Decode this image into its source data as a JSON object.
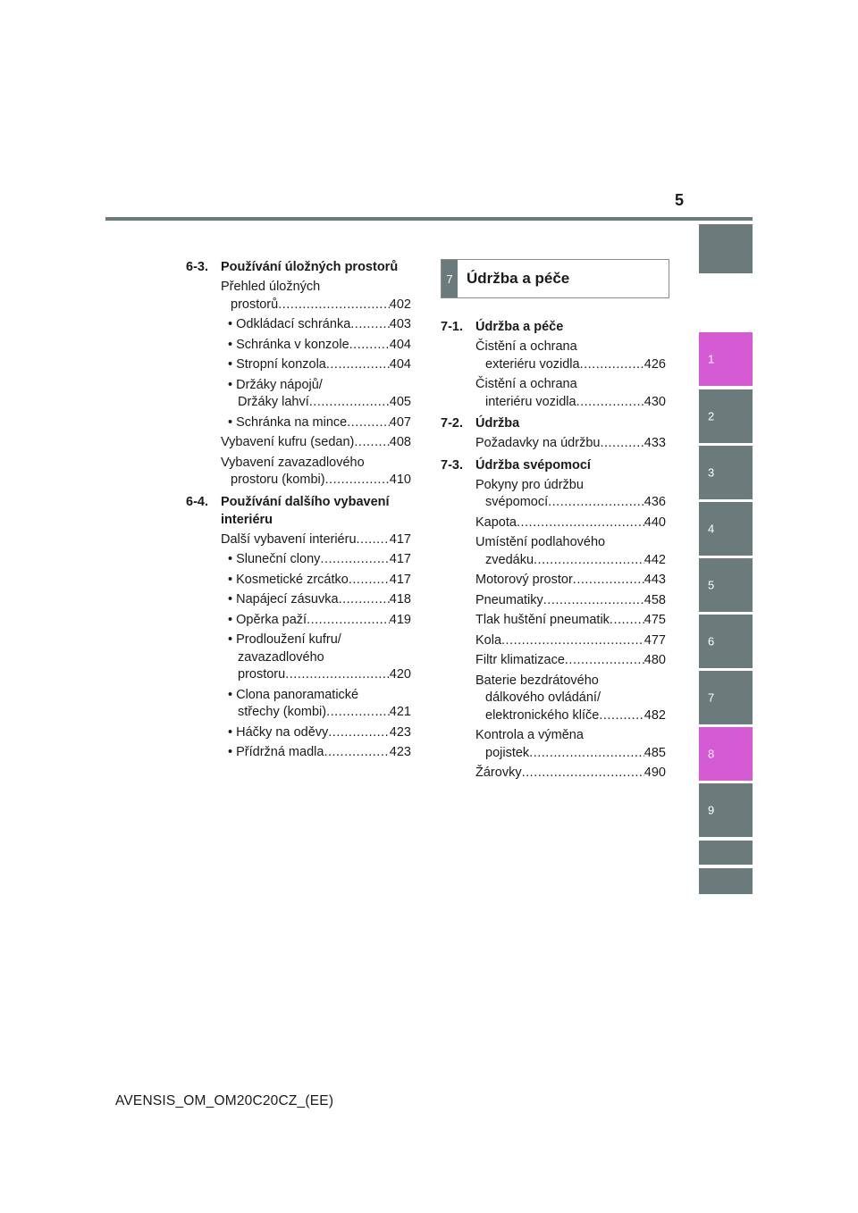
{
  "page_number": "5",
  "footer": "AVENSIS_OM_OM20C20CZ_(EE)",
  "colors": {
    "tab_gray": "#6b7b7b",
    "tab_pink": "#d45bd4"
  },
  "tabs": [
    {
      "label": "",
      "color": "gray"
    },
    {
      "label": "1",
      "color": "pink"
    },
    {
      "label": "2",
      "color": "gray"
    },
    {
      "label": "3",
      "color": "gray"
    },
    {
      "label": "4",
      "color": "gray"
    },
    {
      "label": "5",
      "color": "gray"
    },
    {
      "label": "6",
      "color": "gray"
    },
    {
      "label": "7",
      "color": "gray"
    },
    {
      "label": "8",
      "color": "pink"
    },
    {
      "label": "9",
      "color": "gray"
    },
    {
      "label": "",
      "color": "gray"
    },
    {
      "label": "",
      "color": "gray"
    }
  ],
  "left": {
    "s1": {
      "num": "6-3.",
      "title": "Používání úložných prostorů"
    },
    "s1_entries": [
      {
        "l1": "Přehled úložných",
        "l2": "prostorů",
        "page": "402"
      },
      {
        "l1": "• Odkládací schránka",
        "page": "403"
      },
      {
        "l1": "• Schránka v konzole",
        "page": "404"
      },
      {
        "l1": "• Stropní konzola",
        "page": "404"
      },
      {
        "l1": "• Držáky nápojů/",
        "l2": "Držáky lahví",
        "page": "405"
      },
      {
        "l1": "• Schránka na mince",
        "page": "407"
      },
      {
        "l1": "Vybavení kufru (sedan)",
        "page": "408"
      },
      {
        "l1": "Vybavení zavazadlového",
        "l2": "prostoru (kombi)",
        "page": "410"
      }
    ],
    "s2": {
      "num": "6-4.",
      "title": "Používání dalšího vybavení interiéru"
    },
    "s2_entries": [
      {
        "l1": "Další vybavení interiéru",
        "page": "417"
      },
      {
        "l1": "• Sluneční clony",
        "page": "417"
      },
      {
        "l1": "• Kosmetické zrcátko",
        "page": "417"
      },
      {
        "l1": "• Napájecí zásuvka",
        "page": "418"
      },
      {
        "l1": "• Opěrka paží",
        "page": "419"
      },
      {
        "l1": "• Prodloužení kufru/",
        "l2": "zavazadlového",
        "l3": "prostoru",
        "page": "420"
      },
      {
        "l1": "• Clona panoramatické",
        "l2": "střechy (kombi)",
        "page": "421"
      },
      {
        "l1": "• Háčky na oděvy",
        "page": "423"
      },
      {
        "l1": "• Přídržná madla",
        "page": "423"
      }
    ]
  },
  "chapter": {
    "badge": "7",
    "title": "Údržba a péče"
  },
  "right": {
    "s1": {
      "num": "7-1.",
      "title": "Údržba a péče"
    },
    "s1_entries": [
      {
        "l1": "Čistění a ochrana",
        "l2": "exteriéru vozidla",
        "page": "426"
      },
      {
        "l1": "Čistění a ochrana",
        "l2": "interiéru vozidla",
        "page": "430"
      }
    ],
    "s2": {
      "num": "7-2.",
      "title": "Údržba"
    },
    "s2_entries": [
      {
        "l1": "Požadavky na údržbu",
        "page": "433"
      }
    ],
    "s3": {
      "num": "7-3.",
      "title": "Údržba svépomocí"
    },
    "s3_entries": [
      {
        "l1": "Pokyny pro údržbu",
        "l2": "svépomocí",
        "page": "436"
      },
      {
        "l1": "Kapota",
        "page": "440"
      },
      {
        "l1": "Umístění podlahového",
        "l2": "zvedáku",
        "page": "442"
      },
      {
        "l1": "Motorový prostor",
        "page": "443"
      },
      {
        "l1": "Pneumatiky",
        "page": "458"
      },
      {
        "l1": "Tlak huštění pneumatik",
        "page": "475"
      },
      {
        "l1": "Kola",
        "page": "477"
      },
      {
        "l1": "Filtr klimatizace",
        "page": "480"
      },
      {
        "l1": "Baterie bezdrátového",
        "l2": "dálkového ovládání/",
        "l3": "elektronického klíče",
        "page": "482"
      },
      {
        "l1": "Kontrola a výměna",
        "l2": "pojistek",
        "page": "485"
      },
      {
        "l1": "Žárovky",
        "page": "490"
      }
    ]
  }
}
